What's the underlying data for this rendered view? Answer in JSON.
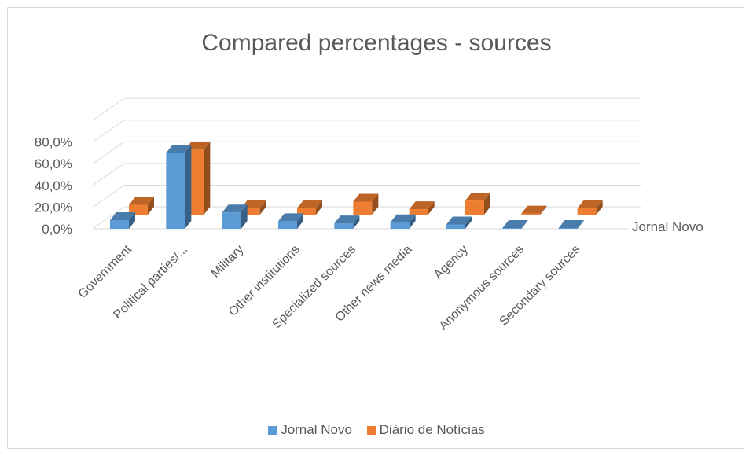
{
  "chart_data": {
    "type": "bar",
    "title": "Compared percentages - sources",
    "categories": [
      "Government",
      "Political parties/...",
      "Military",
      "Other institutions",
      "Specialized sources",
      "Other news media",
      "Agency",
      "Anonymous sources",
      "Secondary sources"
    ],
    "series": [
      {
        "name": "Jornal Novo",
        "color": "#5b9bd5",
        "values": [
          8.0,
          70.0,
          15.0,
          7.0,
          5.0,
          6.0,
          4.0,
          0.5,
          0.5
        ]
      },
      {
        "name": "Diário de Notícias",
        "color": "#ed7d31",
        "values": [
          9.0,
          60.0,
          6.0,
          6.0,
          12.0,
          5.0,
          13.0,
          1.0,
          6.0
        ]
      }
    ],
    "yticks": [
      "0,0%",
      "20,0%",
      "40,0%",
      "60,0%",
      "80,0%"
    ],
    "ylim": [
      0,
      80
    ],
    "depth_axis_label": "Jornal Novo",
    "legend_position": "bottom",
    "gridlines": true
  }
}
